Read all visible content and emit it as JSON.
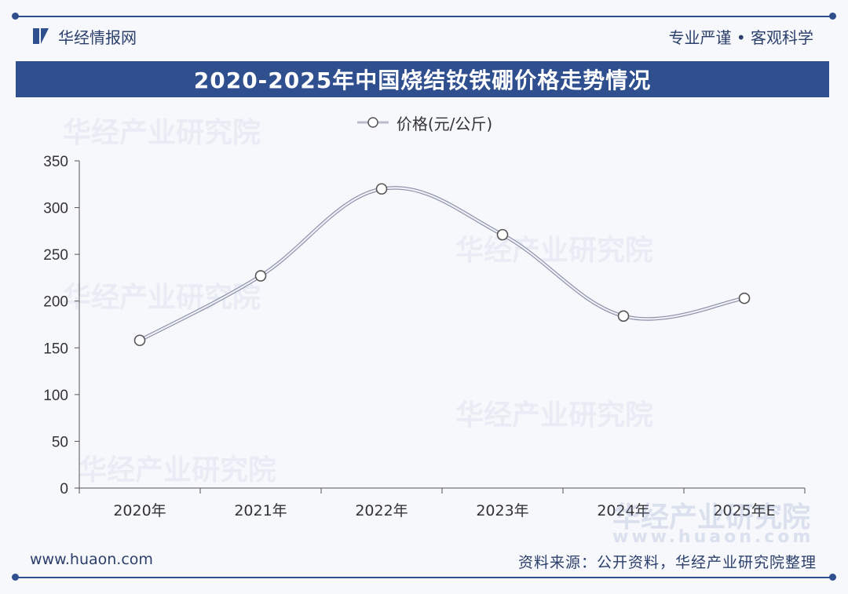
{
  "header": {
    "brand": "华经情报网",
    "slogan": "专业严谨 • 客观科学"
  },
  "footer": {
    "website": "www.huaon.com",
    "source": "资料来源：公开资料，华经产业研究院整理"
  },
  "watermark": {
    "name": "华经产业研究院",
    "url": "www.huaon.com"
  },
  "colors": {
    "primary": "#2f4f8f",
    "line": "#b8bccb",
    "axis": "#555555"
  },
  "chart_data": {
    "type": "line",
    "title": "2020-2025年中国烧结钕铁硼价格走势情况",
    "categories": [
      "2020年",
      "2021年",
      "2022年",
      "2023年",
      "2024年",
      "2025年E"
    ],
    "series": [
      {
        "name": "价格(元/公斤)",
        "values": [
          158,
          227,
          320,
          271,
          184,
          203
        ]
      }
    ],
    "ylim": [
      0,
      350
    ],
    "yticks": [
      0,
      50,
      100,
      150,
      200,
      250,
      300,
      350
    ],
    "xlabel": "",
    "ylabel": "",
    "grid": false,
    "smooth": true,
    "legend_position": "top-center"
  }
}
